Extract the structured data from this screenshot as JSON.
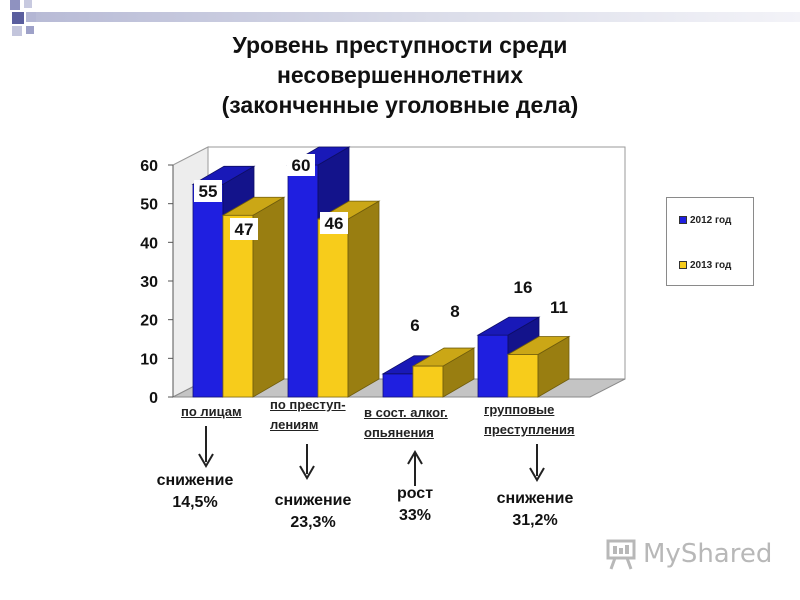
{
  "chart_data": {
    "type": "bar",
    "title_lines": [
      "Уровень преступности среди",
      "несовершеннолетних",
      "(законченные уголовные дела)"
    ],
    "categories": [
      [
        "по лицам"
      ],
      [
        "по преступ-",
        "лениям"
      ],
      [
        "в сост. алког.",
        "опьянения"
      ],
      [
        "групповые",
        "преступления"
      ]
    ],
    "series": [
      {
        "name": "2012 год",
        "color": "#1f1fe0",
        "values": [
          55,
          60,
          6,
          16
        ]
      },
      {
        "name": "2013 год",
        "color": "#f7cc1b",
        "values": [
          47,
          46,
          8,
          11
        ]
      }
    ],
    "data_labels": [
      [
        "55",
        "60",
        "6",
        "16"
      ],
      [
        "47",
        "46",
        "8",
        "11"
      ]
    ],
    "ylim": [
      0,
      60
    ],
    "yticks": [
      "0",
      "10",
      "20",
      "30",
      "40",
      "50",
      "60"
    ],
    "grid": false,
    "legend_position": "right",
    "annotations": [
      {
        "lines": [
          "снижение",
          "14,5%"
        ],
        "direction": "down"
      },
      {
        "lines": [
          "снижение",
          "23,3%"
        ],
        "direction": "down"
      },
      {
        "lines": [
          "рост",
          "33%"
        ],
        "direction": "up"
      },
      {
        "lines": [
          "снижение",
          "31,2%"
        ],
        "direction": "down"
      }
    ]
  },
  "watermark": {
    "text": "MyShared"
  }
}
